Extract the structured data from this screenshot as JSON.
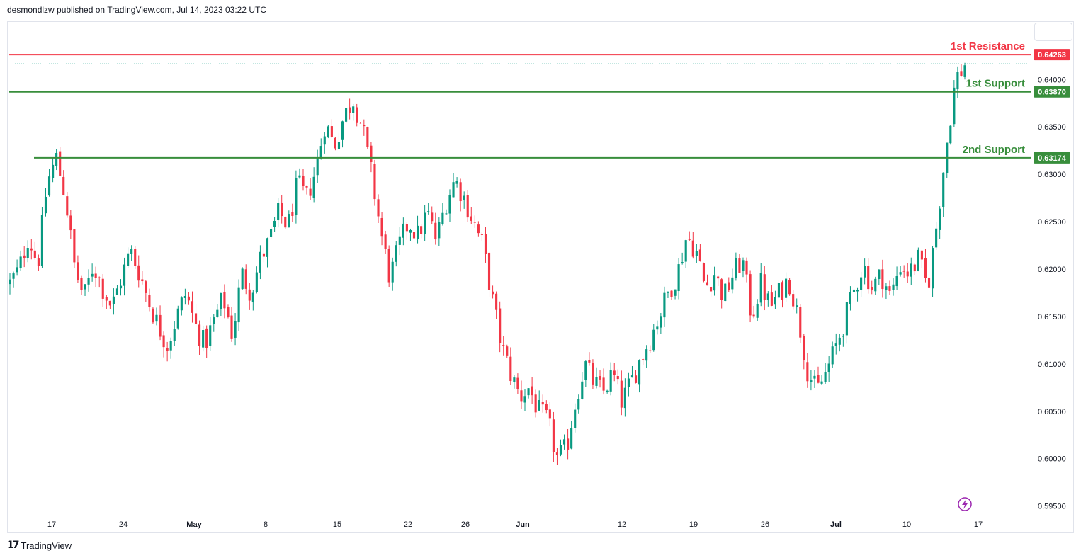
{
  "header": {
    "text": "desmondlzw published on TradingView.com, Jul 14, 2023 03:22 UTC"
  },
  "footer": {
    "brand": "TradingView",
    "mark": "17"
  },
  "colors": {
    "up": "#089981",
    "down": "#f23645",
    "support": "#388e3c",
    "resistance": "#f23645"
  },
  "chart_data": {
    "type": "candlestick",
    "ylim": [
      0.594,
      0.646
    ],
    "y_ticks": [
      {
        "value": 0.64,
        "label": "0.64000"
      },
      {
        "value": 0.635,
        "label": "0.63500"
      },
      {
        "value": 0.63,
        "label": "0.63000"
      },
      {
        "value": 0.625,
        "label": "0.62500"
      },
      {
        "value": 0.62,
        "label": "0.62000"
      },
      {
        "value": 0.615,
        "label": "0.61500"
      },
      {
        "value": 0.61,
        "label": "0.61000"
      },
      {
        "value": 0.605,
        "label": "0.60500"
      },
      {
        "value": 0.6,
        "label": "0.60000"
      },
      {
        "value": 0.595,
        "label": "0.59500"
      }
    ],
    "x_ticks": [
      {
        "label": "17",
        "bold": false
      },
      {
        "label": "24",
        "bold": false
      },
      {
        "label": "May",
        "bold": true
      },
      {
        "label": "8",
        "bold": false
      },
      {
        "label": "15",
        "bold": false
      },
      {
        "label": "22",
        "bold": false
      },
      {
        "label": "26",
        "bold": false
      },
      {
        "label": "Jun",
        "bold": true
      },
      {
        "label": "12",
        "bold": false
      },
      {
        "label": "19",
        "bold": false
      },
      {
        "label": "26",
        "bold": false
      },
      {
        "label": "Jul",
        "bold": true
      },
      {
        "label": "10",
        "bold": false
      },
      {
        "label": "17",
        "bold": false
      }
    ],
    "levels": [
      {
        "name": "1st Resistance",
        "value": 0.64263,
        "tag": "0.64263",
        "kind": "resistance"
      },
      {
        "name": "1st Support",
        "value": 0.6387,
        "tag": "0.63870",
        "kind": "support"
      },
      {
        "name": "2nd Support",
        "value": 0.63174,
        "tag": "0.63174",
        "kind": "support"
      }
    ],
    "last_price_ref": 0.6415,
    "anchors": [
      0.6185,
      0.62,
      0.6235,
      0.6205,
      0.629,
      0.6318,
      0.6275,
      0.62,
      0.617,
      0.6205,
      0.618,
      0.616,
      0.619,
      0.622,
      0.6195,
      0.6165,
      0.614,
      0.612,
      0.615,
      0.6175,
      0.614,
      0.612,
      0.6145,
      0.617,
      0.613,
      0.6195,
      0.6175,
      0.621,
      0.623,
      0.626,
      0.6245,
      0.629,
      0.6275,
      0.6305,
      0.6355,
      0.633,
      0.636,
      0.638,
      0.635,
      0.63,
      0.624,
      0.619,
      0.6225,
      0.625,
      0.6235,
      0.626,
      0.623,
      0.627,
      0.6295,
      0.6275,
      0.625,
      0.6225,
      0.617,
      0.612,
      0.609,
      0.6065,
      0.6075,
      0.605,
      0.604,
      0.6,
      0.601,
      0.606,
      0.61,
      0.608,
      0.607,
      0.609,
      0.606,
      0.608,
      0.6105,
      0.6125,
      0.615,
      0.6175,
      0.6195,
      0.6235,
      0.622,
      0.618,
      0.6195,
      0.617,
      0.6195,
      0.621,
      0.615,
      0.6185,
      0.616,
      0.6175,
      0.619,
      0.615,
      0.6095,
      0.607,
      0.609,
      0.6115,
      0.6145,
      0.6175,
      0.6205,
      0.618,
      0.6195,
      0.617,
      0.6205,
      0.6195,
      0.621,
      0.618,
      0.625,
      0.633,
      0.64,
      0.6415
    ]
  }
}
